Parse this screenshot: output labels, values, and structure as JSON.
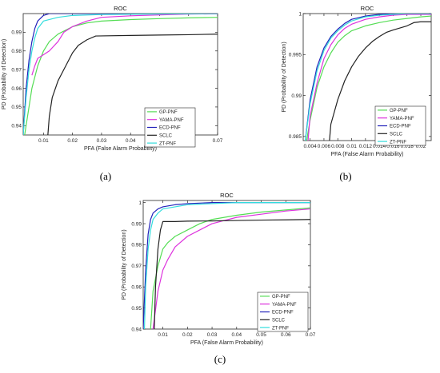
{
  "chart_data": [
    {
      "panel": "(a)",
      "type": "line",
      "title": "ROC",
      "xlabel": "PFA (False Alarm Probability)",
      "ylabel": "PD (Probability of Detection)",
      "xlim": [
        0.003,
        0.07
      ],
      "ylim": [
        0.935,
        1.0
      ],
      "xticks": [
        0.01,
        0.02,
        0.03,
        0.04,
        0.05,
        0.06,
        0.07
      ],
      "xtick_labels": [
        "0.01",
        "0.02",
        "0.03",
        "0.04",
        "0.05",
        "0.06",
        "0.07"
      ],
      "yticks": [
        0.94,
        0.95,
        0.96,
        0.97,
        0.98,
        0.99
      ],
      "ytick_labels": [
        "0.94",
        "0.95",
        "0.96",
        "0.97",
        "0.98",
        "0.99"
      ],
      "grid": false,
      "legend_position": "bottom-right",
      "series": [
        {
          "name": "GP-PNF",
          "color": "#55dd55",
          "x": [
            0.0035,
            0.005,
            0.006,
            0.008,
            0.01,
            0.012,
            0.015,
            0.02,
            0.025,
            0.03,
            0.04,
            0.05,
            0.06,
            0.07
          ],
          "y": [
            0.935,
            0.95,
            0.96,
            0.972,
            0.98,
            0.985,
            0.989,
            0.993,
            0.995,
            0.996,
            0.9968,
            0.9973,
            0.9977,
            0.998
          ]
        },
        {
          "name": "YAMA-PNF",
          "color": "#dd33dd",
          "x": [
            0.006,
            0.007,
            0.008,
            0.01,
            0.012,
            0.015,
            0.017,
            0.02,
            0.025,
            0.03,
            0.04,
            0.05,
            0.06,
            0.07
          ],
          "y": [
            0.967,
            0.972,
            0.976,
            0.978,
            0.98,
            0.985,
            0.99,
            0.993,
            0.996,
            0.998,
            0.9988,
            0.9993,
            0.9997,
            0.9999
          ]
        },
        {
          "name": "ECD-PNF",
          "color": "#2222bb",
          "x": [
            0.003,
            0.004,
            0.005,
            0.006,
            0.007,
            0.008,
            0.01,
            0.012,
            0.015,
            0.02,
            0.03,
            0.05,
            0.07
          ],
          "y": [
            0.935,
            0.96,
            0.975,
            0.985,
            0.992,
            0.996,
            0.999,
            1.0,
            1.0,
            1.0,
            1.0,
            1.0,
            1.0
          ]
        },
        {
          "name": "SCLC",
          "color": "#222222",
          "x": [
            0.0115,
            0.012,
            0.013,
            0.015,
            0.017,
            0.02,
            0.022,
            0.025,
            0.028,
            0.04,
            0.05,
            0.06,
            0.07
          ],
          "y": [
            0.935,
            0.945,
            0.955,
            0.964,
            0.97,
            0.979,
            0.983,
            0.986,
            0.988,
            0.9883,
            0.9885,
            0.9887,
            0.989
          ]
        },
        {
          "name": "ZT-PNF",
          "color": "#33dddd",
          "x": [
            0.003,
            0.004,
            0.005,
            0.006,
            0.007,
            0.008,
            0.01,
            0.015,
            0.02,
            0.03,
            0.05,
            0.07
          ],
          "y": [
            0.935,
            0.955,
            0.97,
            0.98,
            0.987,
            0.992,
            0.996,
            0.998,
            0.999,
            0.9995,
            0.9998,
            1.0
          ]
        }
      ]
    },
    {
      "panel": "(b)",
      "type": "line",
      "title": "ROC",
      "xlabel": "PFA (False Alarm Probability)",
      "ylabel": "PD (Probability of Detection)",
      "xlim": [
        0.003,
        0.0215
      ],
      "ylim": [
        0.9845,
        1.0
      ],
      "xticks": [
        0.004,
        0.006,
        0.008,
        0.01,
        0.012,
        0.014,
        0.016,
        0.018,
        0.02
      ],
      "xtick_labels": [
        "0.004",
        "0.006",
        "0.008",
        "0.01",
        "0.012",
        "0.014",
        "0.016",
        "0.018",
        "0.02"
      ],
      "yticks": [
        0.985,
        0.99,
        0.995,
        1.0
      ],
      "ytick_labels": [
        "0.985",
        "0.99",
        "0.995",
        "1"
      ],
      "grid": false,
      "legend_position": "bottom-right",
      "series": [
        {
          "name": "GP-PNF",
          "color": "#55dd55",
          "x": [
            0.0035,
            0.004,
            0.005,
            0.006,
            0.007,
            0.008,
            0.009,
            0.01,
            0.012,
            0.014,
            0.016,
            0.018,
            0.02,
            0.0215
          ],
          "y": [
            0.9845,
            0.987,
            0.991,
            0.9935,
            0.9952,
            0.9965,
            0.9973,
            0.9979,
            0.9985,
            0.9989,
            0.9992,
            0.9994,
            0.9996,
            0.9997
          ]
        },
        {
          "name": "YAMA-PNF",
          "color": "#dd33dd",
          "x": [
            0.0037,
            0.004,
            0.005,
            0.006,
            0.007,
            0.008,
            0.009,
            0.01,
            0.012,
            0.014,
            0.016,
            0.018,
            0.02,
            0.0215
          ],
          "y": [
            0.9845,
            0.9875,
            0.9915,
            0.9945,
            0.9962,
            0.9974,
            0.9982,
            0.9987,
            0.9993,
            0.9996,
            0.9998,
            0.9999,
            0.9999,
            0.9999
          ]
        },
        {
          "name": "ECD-PNF",
          "color": "#2222bb",
          "x": [
            0.0033,
            0.004,
            0.005,
            0.006,
            0.007,
            0.008,
            0.009,
            0.01,
            0.012,
            0.014,
            0.016,
            0.018,
            0.02,
            0.0215
          ],
          "y": [
            0.9845,
            0.9895,
            0.9935,
            0.9958,
            0.9972,
            0.9981,
            0.9988,
            0.9993,
            0.9997,
            0.9999,
            1.0,
            1.0,
            1.0,
            1.0
          ]
        },
        {
          "name": "SCLC",
          "color": "#222222",
          "x": [
            0.0068,
            0.007,
            0.008,
            0.009,
            0.01,
            0.011,
            0.012,
            0.013,
            0.014,
            0.015,
            0.016,
            0.018,
            0.019,
            0.02,
            0.0215
          ],
          "y": [
            0.9845,
            0.9865,
            0.9895,
            0.9918,
            0.9935,
            0.9948,
            0.9958,
            0.9966,
            0.9972,
            0.9977,
            0.998,
            0.9985,
            0.9989,
            0.999,
            0.999
          ]
        },
        {
          "name": "ZT-PNF",
          "color": "#33dddd",
          "x": [
            0.0033,
            0.004,
            0.005,
            0.006,
            0.007,
            0.008,
            0.009,
            0.01,
            0.012,
            0.014,
            0.016,
            0.018,
            0.02,
            0.0215
          ],
          "y": [
            0.9845,
            0.989,
            0.993,
            0.9955,
            0.997,
            0.9979,
            0.9986,
            0.9991,
            0.9996,
            0.9998,
            0.9999,
            1.0,
            1.0,
            1.0
          ]
        }
      ]
    },
    {
      "panel": "(c)",
      "type": "line",
      "title": "ROC",
      "xlabel": "PFA (False Alarm Probability)",
      "ylabel": "PD (Probability of Detection)",
      "xlim": [
        0.002,
        0.07
      ],
      "ylim": [
        0.94,
        1.001
      ],
      "xticks": [
        0.01,
        0.02,
        0.03,
        0.04,
        0.05,
        0.06,
        0.07
      ],
      "xtick_labels": [
        "0.01",
        "0.02",
        "0.03",
        "0.04",
        "0.05",
        "0.06",
        "0.07"
      ],
      "yticks": [
        0.94,
        0.95,
        0.96,
        0.97,
        0.98,
        0.99,
        1.0
      ],
      "ytick_labels": [
        "0.94",
        "0.95",
        "0.96",
        "0.97",
        "0.98",
        "0.99",
        "1"
      ],
      "grid": false,
      "legend_position": "bottom-right",
      "series": [
        {
          "name": "GP-PNF",
          "color": "#55dd55",
          "x": [
            0.005,
            0.006,
            0.008,
            0.01,
            0.012,
            0.015,
            0.02,
            0.025,
            0.03,
            0.04,
            0.05,
            0.06,
            0.07
          ],
          "y": [
            0.94,
            0.958,
            0.97,
            0.978,
            0.981,
            0.984,
            0.987,
            0.99,
            0.992,
            0.994,
            0.9955,
            0.9965,
            0.9975
          ]
        },
        {
          "name": "YAMA-PNF",
          "color": "#dd33dd",
          "x": [
            0.006,
            0.008,
            0.01,
            0.012,
            0.015,
            0.02,
            0.025,
            0.03,
            0.035,
            0.04,
            0.05,
            0.06,
            0.07
          ],
          "y": [
            0.94,
            0.958,
            0.968,
            0.973,
            0.979,
            0.984,
            0.987,
            0.99,
            0.9915,
            0.993,
            0.9945,
            0.996,
            0.997
          ]
        },
        {
          "name": "ECD-PNF",
          "color": "#2222bb",
          "x": [
            0.002,
            0.003,
            0.004,
            0.005,
            0.006,
            0.008,
            0.01,
            0.015,
            0.02,
            0.03,
            0.04,
            0.05,
            0.07
          ],
          "y": [
            0.94,
            0.968,
            0.985,
            0.992,
            0.995,
            0.997,
            0.998,
            0.999,
            0.9995,
            1.0,
            1.0,
            1.0,
            1.0
          ]
        },
        {
          "name": "SCLC",
          "color": "#222222",
          "x": [
            0.0065,
            0.007,
            0.008,
            0.009,
            0.01,
            0.012,
            0.015,
            0.02,
            0.03,
            0.04,
            0.05,
            0.06,
            0.07
          ],
          "y": [
            0.94,
            0.96,
            0.978,
            0.987,
            0.991,
            0.991,
            0.991,
            0.9912,
            0.9913,
            0.9915,
            0.9917,
            0.9918,
            0.992
          ]
        },
        {
          "name": "ZT-PNF",
          "color": "#33dddd",
          "x": [
            0.0025,
            0.003,
            0.004,
            0.005,
            0.006,
            0.008,
            0.01,
            0.015,
            0.02,
            0.03,
            0.04,
            0.05,
            0.07
          ],
          "y": [
            0.94,
            0.96,
            0.978,
            0.987,
            0.992,
            0.995,
            0.997,
            0.998,
            0.999,
            0.9995,
            1.0,
            1.0,
            1.0
          ]
        }
      ]
    }
  ]
}
